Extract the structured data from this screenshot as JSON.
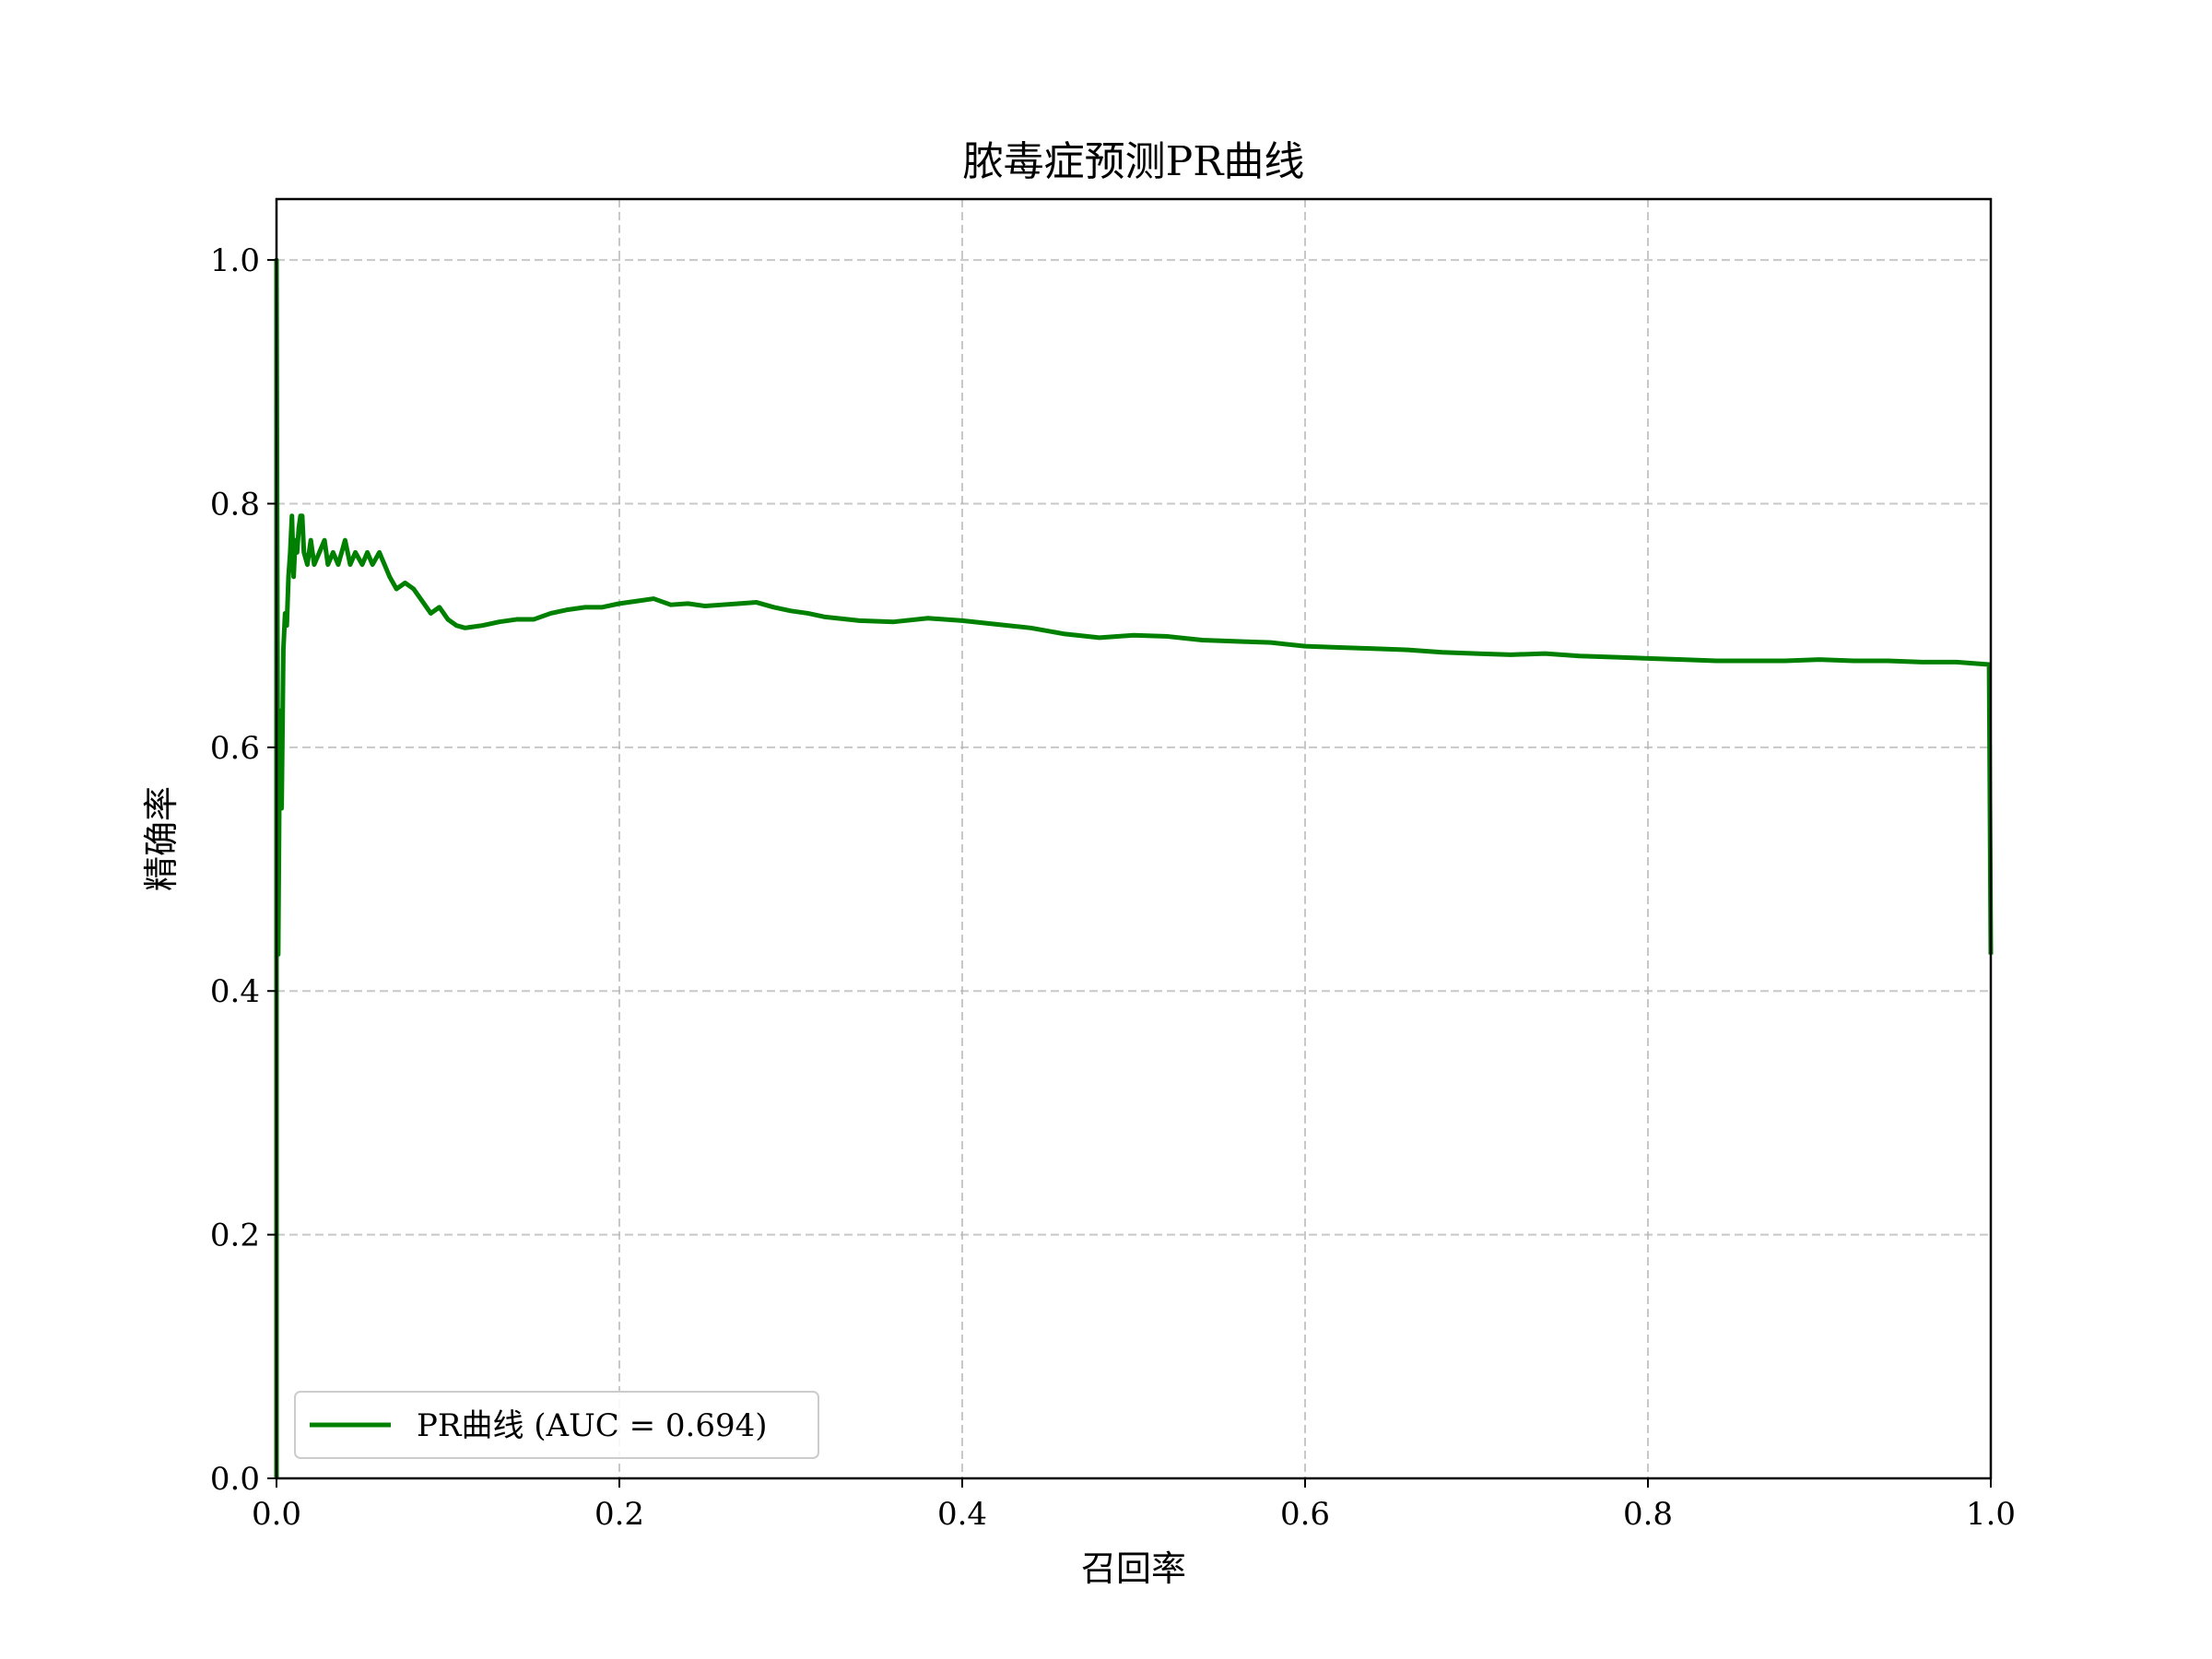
{
  "chart_data": {
    "type": "line",
    "title": "脓毒症预测PR曲线",
    "xlabel": "召回率",
    "ylabel": "精确率",
    "xlim": [
      0.0,
      1.0
    ],
    "ylim": [
      0.0,
      1.05
    ],
    "x_ticks": [
      "0.0",
      "0.2",
      "0.4",
      "0.6",
      "0.8",
      "1.0"
    ],
    "y_ticks": [
      "0.0",
      "0.2",
      "0.4",
      "0.6",
      "0.8",
      "1.0"
    ],
    "grid": true,
    "legend_position": "lower left",
    "series": [
      {
        "name": "PR曲线 (AUC = 0.694)",
        "color": "#008000",
        "x": [
          0.0,
          0.0,
          0.001,
          0.002,
          0.003,
          0.004,
          0.005,
          0.006,
          0.007,
          0.008,
          0.009,
          0.01,
          0.011,
          0.012,
          0.013,
          0.014,
          0.015,
          0.016,
          0.018,
          0.02,
          0.022,
          0.025,
          0.028,
          0.03,
          0.033,
          0.036,
          0.04,
          0.043,
          0.046,
          0.05,
          0.053,
          0.056,
          0.06,
          0.063,
          0.066,
          0.07,
          0.075,
          0.08,
          0.085,
          0.09,
          0.095,
          0.1,
          0.105,
          0.11,
          0.12,
          0.13,
          0.14,
          0.15,
          0.16,
          0.17,
          0.18,
          0.19,
          0.2,
          0.21,
          0.22,
          0.23,
          0.24,
          0.25,
          0.26,
          0.27,
          0.28,
          0.29,
          0.3,
          0.31,
          0.32,
          0.34,
          0.36,
          0.38,
          0.4,
          0.42,
          0.44,
          0.46,
          0.48,
          0.5,
          0.52,
          0.54,
          0.56,
          0.58,
          0.6,
          0.62,
          0.64,
          0.66,
          0.68,
          0.7,
          0.72,
          0.74,
          0.76,
          0.78,
          0.8,
          0.82,
          0.84,
          0.86,
          0.88,
          0.9,
          0.92,
          0.94,
          0.96,
          0.98,
          0.999,
          1.0
        ],
        "y": [
          0.0,
          1.0,
          0.43,
          0.63,
          0.55,
          0.68,
          0.71,
          0.7,
          0.74,
          0.76,
          0.79,
          0.74,
          0.77,
          0.76,
          0.78,
          0.79,
          0.79,
          0.76,
          0.75,
          0.77,
          0.75,
          0.76,
          0.77,
          0.75,
          0.76,
          0.75,
          0.77,
          0.75,
          0.76,
          0.75,
          0.76,
          0.75,
          0.76,
          0.75,
          0.74,
          0.73,
          0.735,
          0.73,
          0.72,
          0.71,
          0.715,
          0.705,
          0.7,
          0.698,
          0.7,
          0.703,
          0.705,
          0.705,
          0.71,
          0.713,
          0.715,
          0.715,
          0.718,
          0.72,
          0.722,
          0.717,
          0.718,
          0.716,
          0.717,
          0.718,
          0.719,
          0.715,
          0.712,
          0.71,
          0.707,
          0.704,
          0.703,
          0.706,
          0.704,
          0.701,
          0.698,
          0.693,
          0.69,
          0.692,
          0.691,
          0.688,
          0.687,
          0.686,
          0.683,
          0.682,
          0.681,
          0.68,
          0.678,
          0.677,
          0.676,
          0.677,
          0.675,
          0.674,
          0.673,
          0.672,
          0.671,
          0.671,
          0.671,
          0.672,
          0.671,
          0.671,
          0.67,
          0.67,
          0.668,
          0.43
        ]
      }
    ]
  }
}
